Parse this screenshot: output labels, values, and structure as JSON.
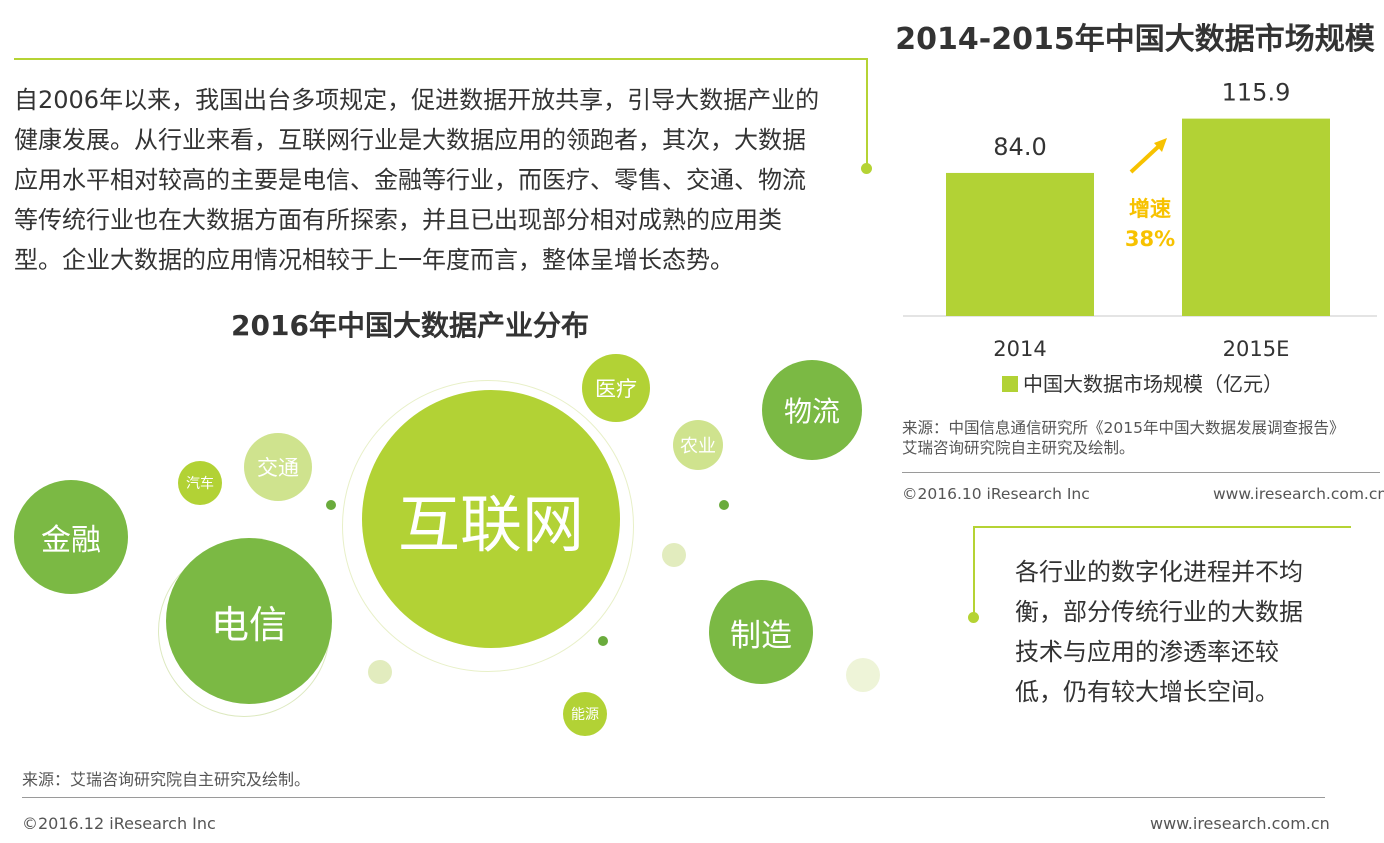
{
  "intro": {
    "lines": [
      "自2006年以来，我国出台多项规定，促进数据开放共享，引导大数据产业的",
      "健康发展。从行业来看，互联网行业是大数据应用的领跑者，其次，大数据",
      "应用水平相对较高的主要是电信、金融等行业，而医疗、零售、交通、物流",
      "等传统行业也在大数据方面有所探索，并且已出现部分相对成熟的应用类",
      "型。企业大数据的应用情况相较于上一年度而言，整体呈增长态势。"
    ]
  },
  "bubbles": {
    "title": "2016年中国大数据产业分布",
    "items": [
      {
        "key": "internet",
        "label": "互联网",
        "color": "#b2d235"
      },
      {
        "key": "telecom",
        "label": "电信",
        "color": "#7bb944"
      },
      {
        "key": "finance",
        "label": "金融",
        "color": "#7bb944"
      },
      {
        "key": "logistics",
        "label": "物流",
        "color": "#7bb944"
      },
      {
        "key": "manufacturing",
        "label": "制造",
        "color": "#7bb944"
      },
      {
        "key": "medical",
        "label": "医疗",
        "color": "#b2d235"
      },
      {
        "key": "traffic",
        "label": "交通",
        "color": "#cfe38e"
      },
      {
        "key": "auto",
        "label": "汽车",
        "color": "#b2d235"
      },
      {
        "key": "agriculture",
        "label": "农业",
        "color": "#cfe38e"
      },
      {
        "key": "energy",
        "label": "能源",
        "color": "#b2d235"
      }
    ],
    "source": "来源：艾瑞咨询研究院自主研究及绘制。",
    "copyright": "©2016.12 iResearch Inc",
    "website": "www.iresearch.com.cn"
  },
  "chart_data": {
    "type": "bar",
    "title": "2014-2015年中国大数据市场规模",
    "categories": [
      "2014",
      "2015E"
    ],
    "series": [
      {
        "name": "中国大数据市场规模（亿元）",
        "values": [
          84.0,
          115.9
        ],
        "color": "#b2d235"
      }
    ],
    "data_labels": [
      "84.0",
      "115.9"
    ],
    "annotation": {
      "line1": "增速",
      "line2": "38%",
      "color": "#f7c200"
    },
    "ylim": [
      0,
      130
    ],
    "grid": false,
    "legend": "bottom"
  },
  "chart_meta": {
    "source_line1": "来源：中国信息通信研究所《2015年中国大数据发展调查报告》",
    "source_line2": "艾瑞咨询研究院自主研究及绘制。",
    "copyright": "©2016.10 iResearch Inc",
    "website": "www.iresearch.com.cn"
  },
  "note": {
    "lines": [
      "各行业的数字化进程并不均",
      "衡，部分传统行业的大数据",
      "技术与应用的渗透率还较",
      "低，仍有较大增长空间。"
    ]
  },
  "colors": {
    "accent": "#b5d334",
    "dark_green": "#7bb944",
    "light_green": "#cfe38e",
    "growth": "#f7c200"
  }
}
